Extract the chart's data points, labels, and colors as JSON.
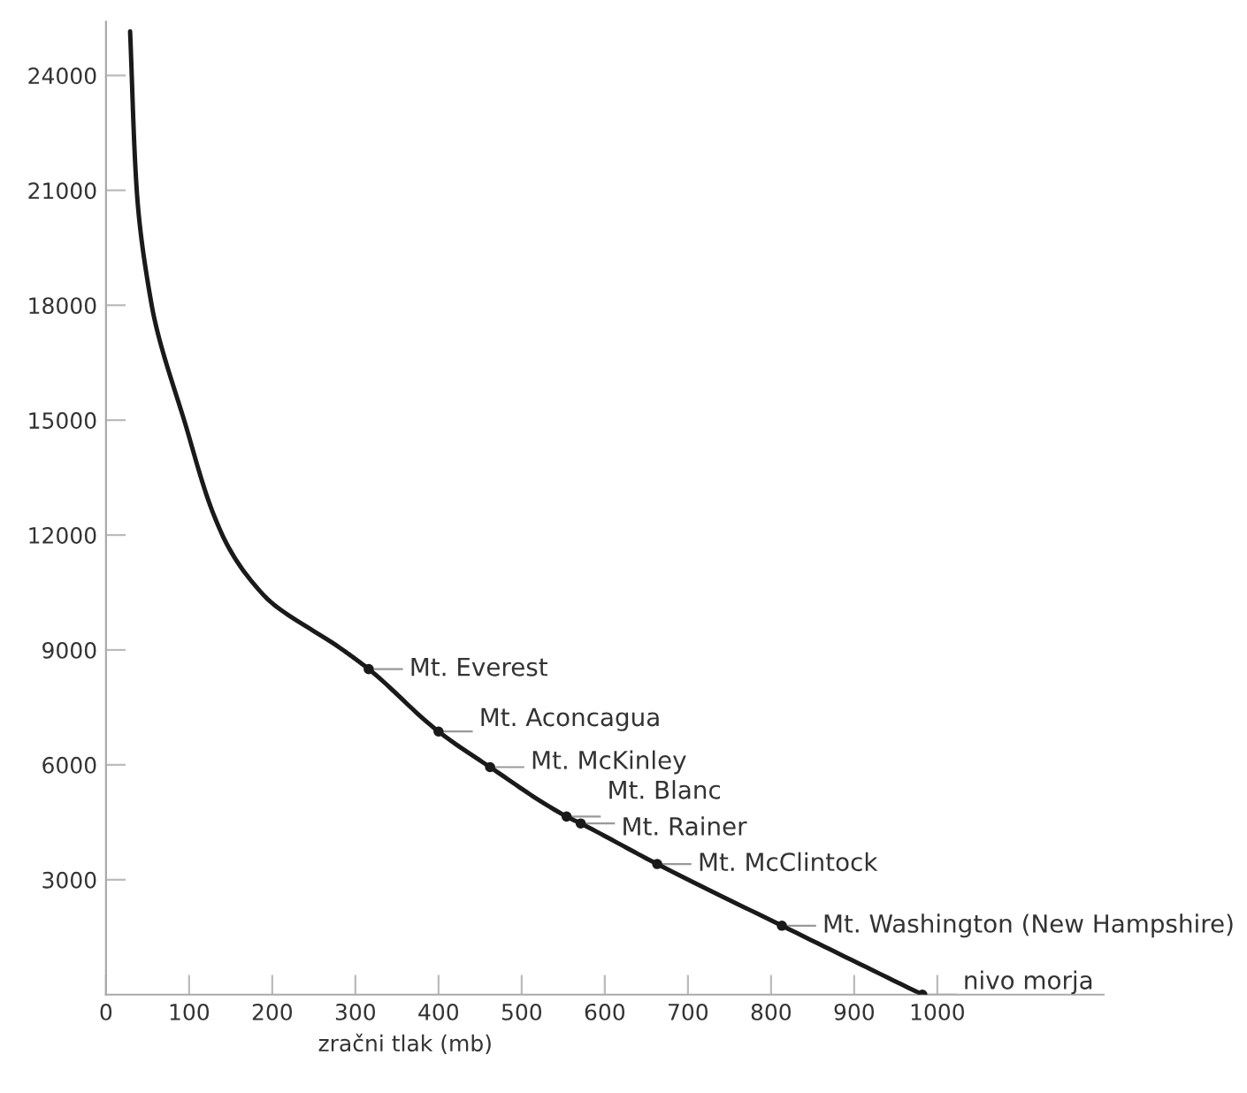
{
  "chart_data": {
    "type": "line",
    "xlabel": "zračni tlak (mb)",
    "series": [
      {
        "color": "#1a1a1a",
        "x": [
          29,
          37,
          55,
          94,
          140,
          191,
          285,
          316,
          400,
          462,
          554,
          571,
          663,
          813,
          982
        ],
        "values": [
          25150,
          21000,
          18000,
          15000,
          12000,
          10400,
          9000,
          8500,
          6870,
          5940,
          4650,
          4470,
          3410,
          1800,
          0
        ]
      },
      {
        "type": "scatter",
        "color": "#1a1a1a",
        "marker": "circle",
        "x": [
          316,
          400,
          462,
          554,
          571,
          663,
          813,
          982
        ],
        "values": [
          8500,
          6870,
          5940,
          4650,
          4470,
          3410,
          1800,
          0
        ]
      }
    ],
    "annotations": [
      {
        "text": "Mt. Everest",
        "x": 316,
        "y": 8500
      },
      {
        "text": "Mt. Aconcagua",
        "x": 400,
        "y": 6870
      },
      {
        "text": "Mt. McKinley",
        "x": 462,
        "y": 5940
      },
      {
        "text": "Mt. Blanc",
        "x": 554,
        "y": 4650
      },
      {
        "text": "Mt. Rainer",
        "x": 571,
        "y": 4470
      },
      {
        "text": "Mt. McClintock",
        "x": 663,
        "y": 3410
      },
      {
        "text": "Mt. Washington (New Hampshire)",
        "x": 813,
        "y": 1800
      },
      {
        "text": "nivo morja",
        "x": 982,
        "y": 0
      }
    ],
    "xlim": [
      0,
      1200
    ],
    "ylim": [
      0,
      25400
    ],
    "xticks": [
      0,
      100,
      200,
      300,
      400,
      500,
      600,
      700,
      800,
      900,
      1000
    ],
    "yticks": [
      3000,
      6000,
      9000,
      12000,
      15000,
      18000,
      21000,
      24000
    ],
    "grid": false
  }
}
